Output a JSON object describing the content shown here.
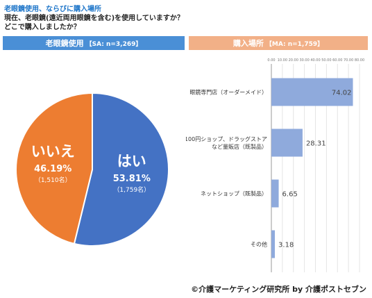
{
  "title": {
    "line1": "老眼鏡使用、ならびに購入場所",
    "line2": "現在、老眼鏡(遠近両用眼鏡を含む)を使用していますか？",
    "line3": "どこで購入しましたか？"
  },
  "left_panel": {
    "header": "老眼鏡使用",
    "subheader": "【SA: n=3,269】"
  },
  "right_panel": {
    "header": "購入場所",
    "subheader": "【MA: n=1,759】"
  },
  "chart_data": [
    {
      "type": "pie",
      "title": "老眼鏡使用",
      "slices": [
        {
          "label": "はい",
          "value": 53.81,
          "value_label": "53.81%",
          "count_label": "（1,759名）",
          "color": "#4472c4"
        },
        {
          "label": "いいえ",
          "value": 46.19,
          "value_label": "46.19%",
          "count_label": "（1,510名）",
          "color": "#ed7d31"
        }
      ]
    },
    {
      "type": "bar",
      "orientation": "horizontal",
      "title": "購入場所",
      "xlim": [
        0,
        80
      ],
      "tick_values": [
        0,
        10,
        20,
        30,
        40,
        50,
        60,
        70,
        80
      ],
      "tick_labels": [
        "0.00",
        "10.00",
        "20.00",
        "30.00",
        "40.00",
        "50.00",
        "60.00",
        "70.00",
        "80.00"
      ],
      "bar_color": "#8faadc",
      "categories": [
        {
          "lines": [
            "眼鏡専門店（オーダーメイド）"
          ],
          "value": 74.02,
          "value_label": "74.02"
        },
        {
          "lines": [
            "100円ショップ、ドラッグストア",
            "など量販店（既製品）"
          ],
          "value": 28.31,
          "value_label": "28.31"
        },
        {
          "lines": [
            "ネットショップ（既製品）"
          ],
          "value": 6.65,
          "value_label": "6.65"
        },
        {
          "lines": [
            "その他"
          ],
          "value": 3.18,
          "value_label": "3.18"
        }
      ]
    }
  ],
  "copyright": "©介護マーケティング研究所 by 介護ポストセブン"
}
